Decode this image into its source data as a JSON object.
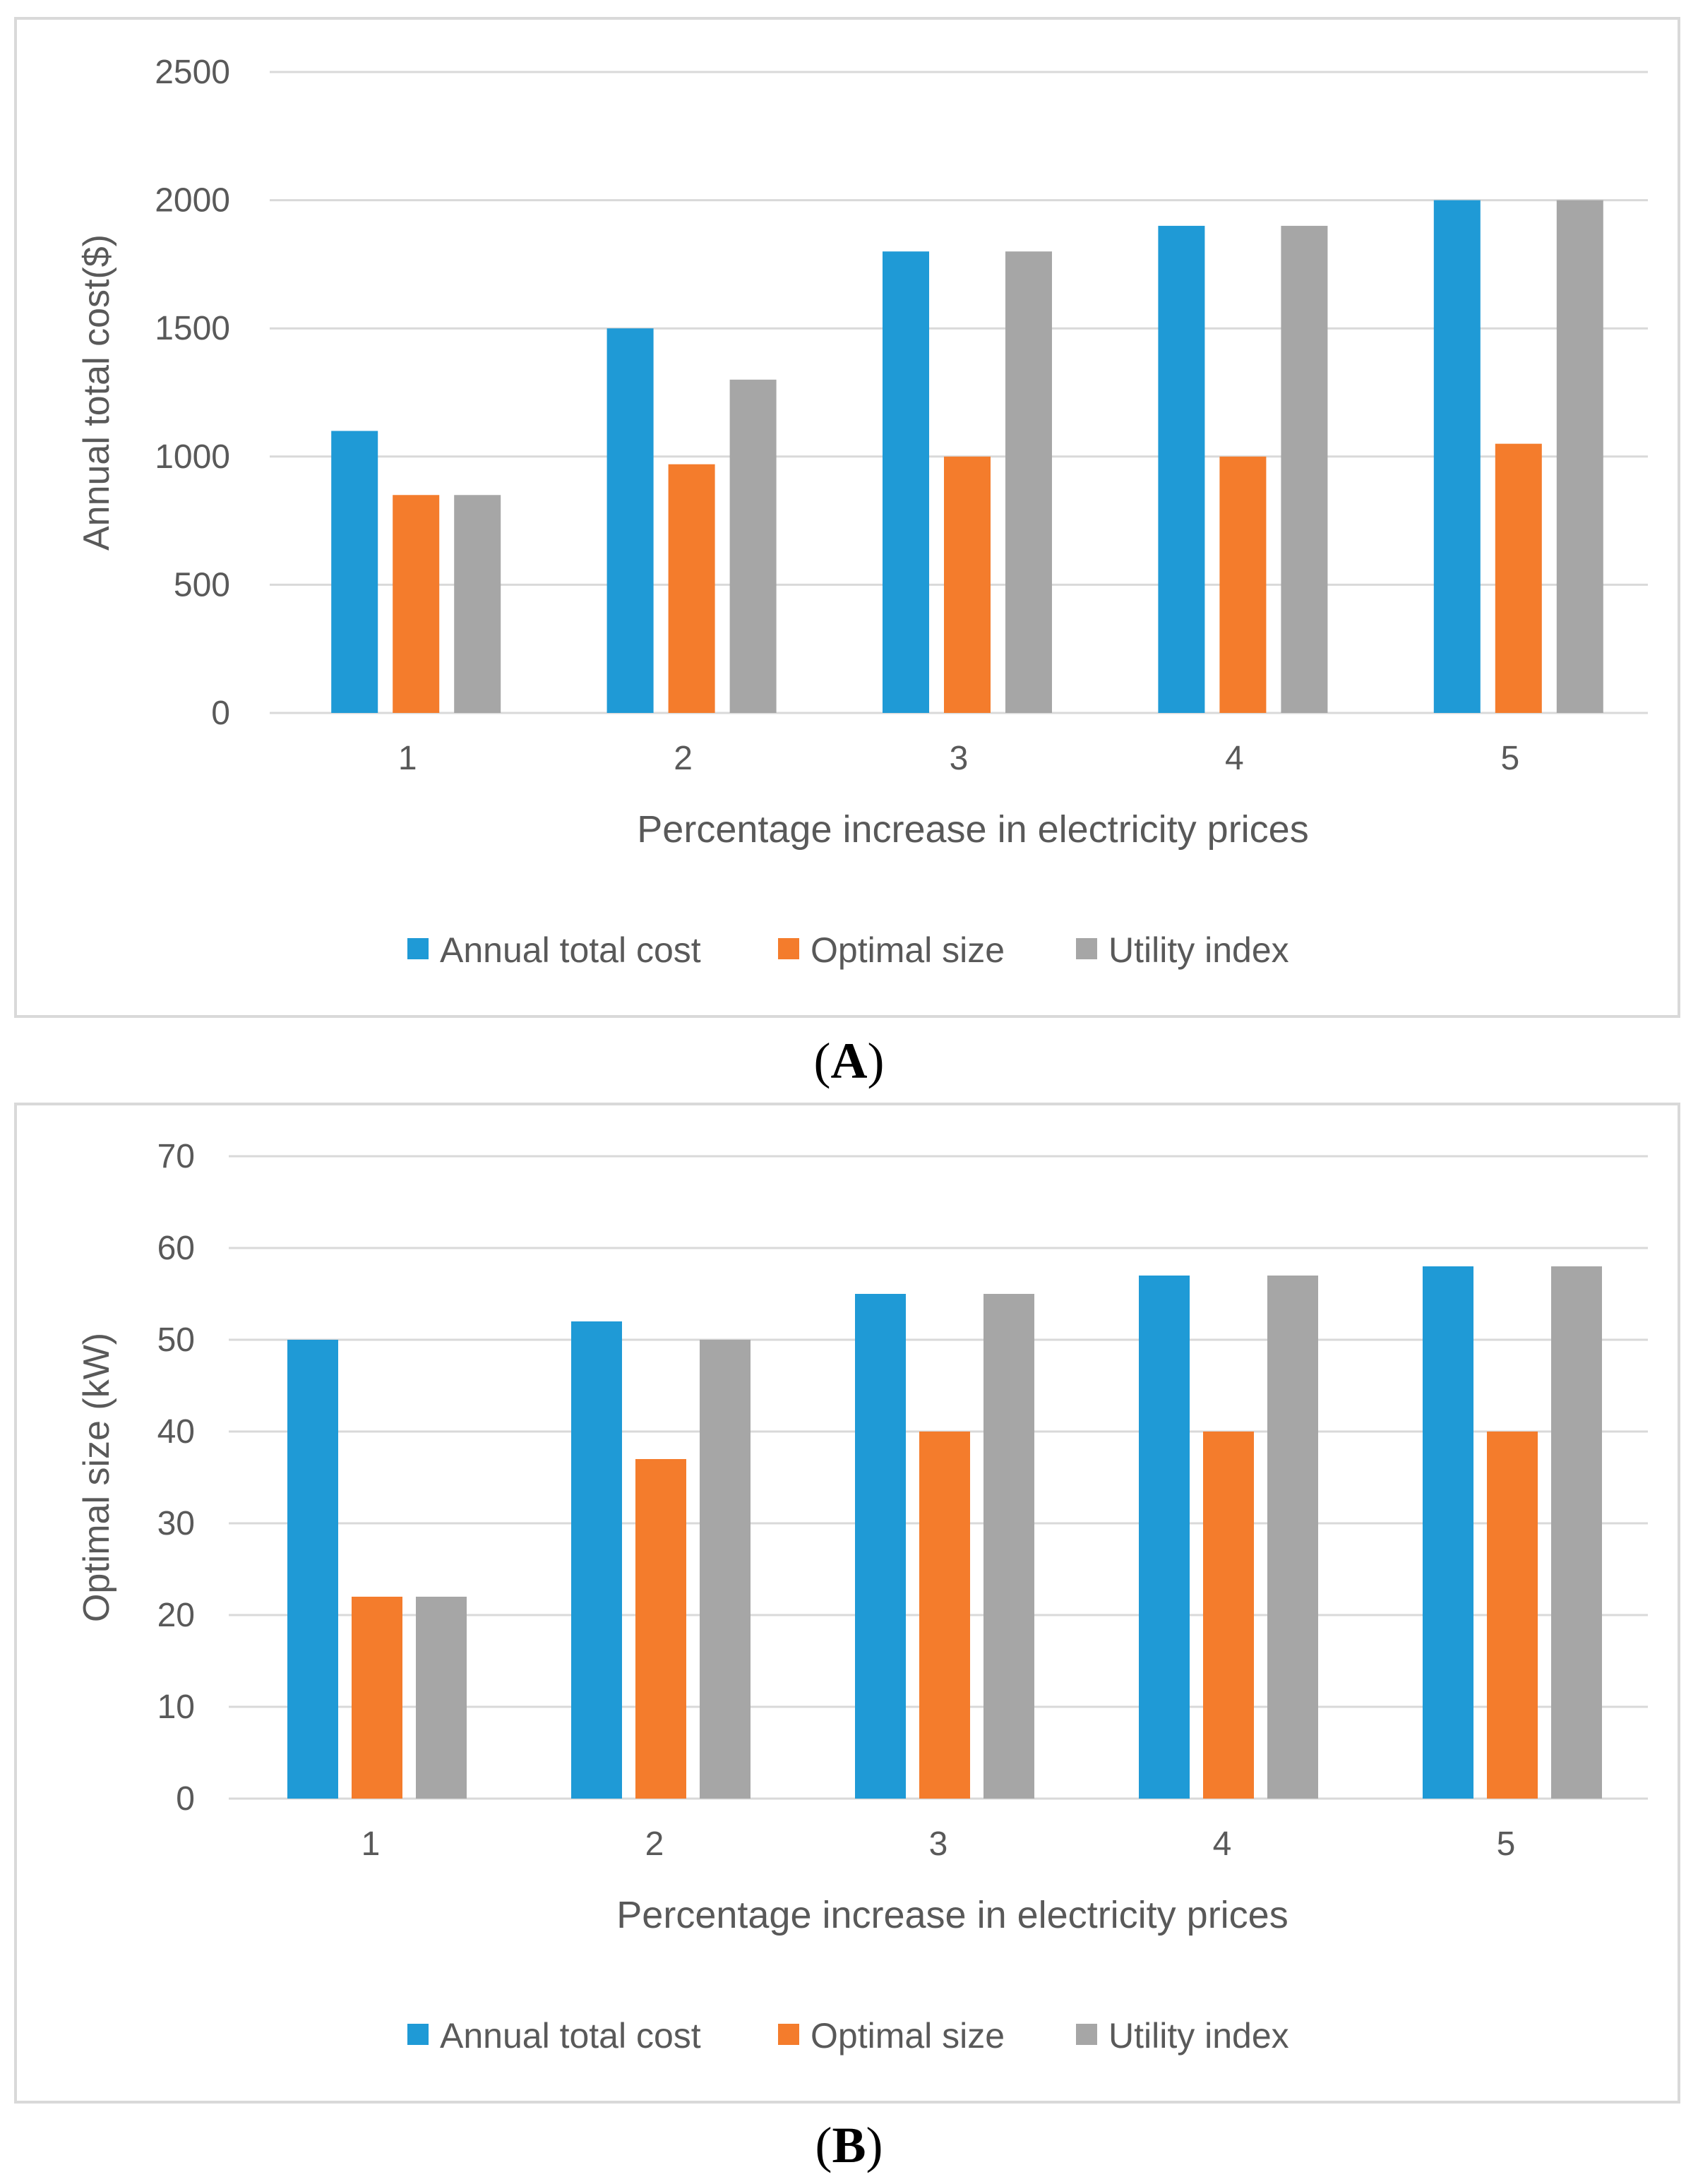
{
  "colors": {
    "series": [
      "#1f9ad6",
      "#f47c2c",
      "#a6a6a6"
    ],
    "grid": "#d9d9d9",
    "text": "#595959"
  },
  "captions": {
    "a_open": "(",
    "a_letter": "A",
    "a_close": ")",
    "b_open": "(",
    "b_letter": "B",
    "b_close": ")"
  },
  "chart_data": [
    {
      "id": "A",
      "type": "bar",
      "title": "",
      "xlabel": "Percentage increase in electricity prices",
      "ylabel": "Annual total cost($)",
      "categories": [
        "1",
        "2",
        "3",
        "4",
        "5"
      ],
      "ylim": [
        0,
        2500
      ],
      "yticks": [
        0,
        500,
        1000,
        1500,
        2000,
        2500
      ],
      "grid": true,
      "legend": "bottom-center",
      "series": [
        {
          "name": "Annual total cost",
          "values": [
            1100,
            1500,
            1800,
            1900,
            2000
          ]
        },
        {
          "name": "Optimal size",
          "values": [
            850,
            970,
            1000,
            1000,
            1050
          ]
        },
        {
          "name": "Utility index",
          "values": [
            850,
            1300,
            1800,
            1900,
            2000
          ]
        }
      ]
    },
    {
      "id": "B",
      "type": "bar",
      "title": "",
      "xlabel": "Percentage increase in electricity prices",
      "ylabel": "Optimal size (kW)",
      "categories": [
        "1",
        "2",
        "3",
        "4",
        "5"
      ],
      "ylim": [
        0,
        70
      ],
      "yticks": [
        0,
        10,
        20,
        30,
        40,
        50,
        60,
        70
      ],
      "grid": true,
      "legend": "bottom-center",
      "series": [
        {
          "name": "Annual total cost",
          "values": [
            50,
            52,
            55,
            57,
            58
          ]
        },
        {
          "name": "Optimal size",
          "values": [
            22,
            37,
            40,
            40,
            40
          ]
        },
        {
          "name": "Utility index",
          "values": [
            22,
            50,
            55,
            57,
            58
          ]
        }
      ]
    }
  ]
}
